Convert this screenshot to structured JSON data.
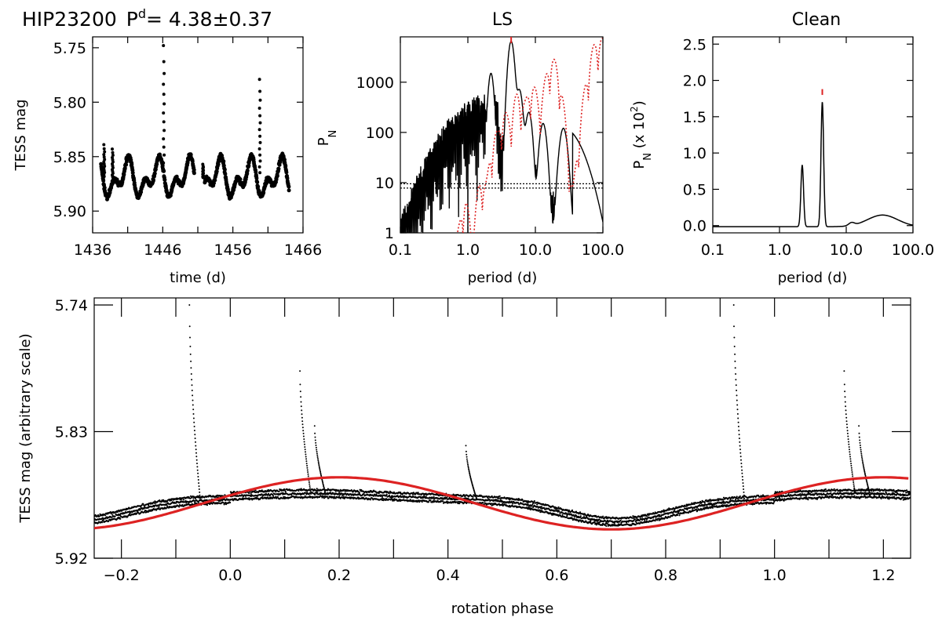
{
  "header": {
    "star": "HIP23200",
    "period_prefix": "P",
    "period_sup": "d",
    "period_value": "= 4.38±0.37"
  },
  "chart_data": [
    {
      "type": "scatter",
      "title": "",
      "xlabel": "time (d)",
      "ylabel": "TESS mag",
      "xlim": [
        1436,
        1466
      ],
      "ylim": [
        5.92,
        5.74
      ],
      "y_inverted": true,
      "xticks": [
        "1436",
        "1446",
        "1456",
        "1466"
      ],
      "yticks": [
        "5.75",
        "5.80",
        "5.85",
        "5.90"
      ],
      "segments": [
        [
          1437.2,
          1450.5
        ],
        [
          1452.0,
          1464.0
        ]
      ],
      "baseline": 5.87,
      "amplitude": 0.022,
      "period_days": 4.38,
      "flares": [
        {
          "x": 1437.6,
          "peak": 5.839
        },
        {
          "x": 1438.8,
          "peak": 5.843
        },
        {
          "x": 1446.1,
          "peak": 5.748
        },
        {
          "x": 1451.7,
          "peak": 5.857
        },
        {
          "x": 1459.8,
          "peak": 5.779
        }
      ]
    },
    {
      "type": "line",
      "title": "LS",
      "xlabel": "period (d)",
      "ylabel": "P",
      "ylabel_sub": "N",
      "x_scale": "log",
      "y_scale": "log",
      "xlim": [
        0.1,
        100
      ],
      "ylim": [
        1,
        8000
      ],
      "xticks": [
        "0.1",
        "1.0",
        "10.0",
        "100.0"
      ],
      "yticks": [
        "1",
        "10",
        "100",
        "1000"
      ],
      "series": [
        {
          "style": "solid",
          "color": "#000000",
          "peaks": [
            [
              2.2,
              1500
            ],
            [
              4.38,
              6500
            ],
            [
              5.8,
              700
            ],
            [
              8.0,
              250
            ],
            [
              13.0,
              150
            ],
            [
              26.0,
              120
            ]
          ]
        },
        {
          "style": "dotted",
          "color": "#dd2222",
          "peaks": [
            [
              0.9,
              4
            ],
            [
              1.6,
              12
            ],
            [
              2.5,
              80
            ],
            [
              3.5,
              250
            ],
            [
              5.5,
              600
            ],
            [
              9.0,
              900
            ],
            [
              18.0,
              3000
            ],
            [
              90.0,
              8000
            ]
          ]
        }
      ],
      "thresholds": [
        9.5,
        7.8
      ],
      "marker_x": 4.38
    },
    {
      "type": "line",
      "title": "Clean",
      "xlabel": "period (d)",
      "ylabel": "P",
      "ylabel_sub": "N",
      "ylabel_rest": " (x 10",
      "ylabel_sup": "2",
      "ylabel_end": ")",
      "x_scale": "log",
      "xlim": [
        0.1,
        100
      ],
      "ylim": [
        -0.1,
        2.6
      ],
      "xticks": [
        "0.1",
        "1.0",
        "10.0",
        "100.0"
      ],
      "yticks": [
        "0.0",
        "0.5",
        "1.0",
        "1.5",
        "2.0",
        "2.5"
      ],
      "peaks": [
        [
          2.19,
          0.85
        ],
        [
          4.38,
          1.72
        ],
        [
          12.0,
          0.04
        ],
        [
          35.0,
          0.16
        ]
      ],
      "marker_x": 4.38
    },
    {
      "type": "scatter",
      "title": "",
      "xlabel": "rotation phase",
      "ylabel": "TESS mag (arbitrary scale)",
      "xlim": [
        -0.25,
        1.25
      ],
      "ylim": [
        5.92,
        5.735
      ],
      "y_inverted": true,
      "xticks": [
        "−0.2",
        "0.0",
        "0.2",
        "0.4",
        "0.6",
        "0.8",
        "1.0",
        "1.2"
      ],
      "yticks": [
        "5.74",
        "5.83",
        "5.92"
      ],
      "model": {
        "mean": 5.881,
        "amplitude": 0.0185,
        "min_phase": 0.7,
        "color": "#dd2222"
      },
      "flares": [
        {
          "x": -0.075,
          "peak": 5.74
        },
        {
          "x": 0.128,
          "peak": 5.787
        },
        {
          "x": 0.155,
          "peak": 5.826
        },
        {
          "x": 0.433,
          "peak": 5.84
        },
        {
          "x": 0.925,
          "peak": 5.74
        },
        {
          "x": 1.128,
          "peak": 5.787
        },
        {
          "x": 1.155,
          "peak": 5.826
        }
      ]
    }
  ]
}
